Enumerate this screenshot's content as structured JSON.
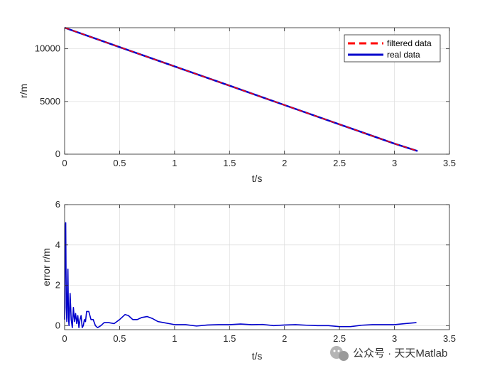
{
  "chart_data": [
    {
      "type": "line",
      "xlabel": "t/s",
      "ylabel": "r/m",
      "xlim": [
        0,
        3.5
      ],
      "ylim": [
        0,
        12000
      ],
      "xticks": [
        0,
        0.5,
        1,
        1.5,
        2,
        2.5,
        3,
        3.5
      ],
      "yticks": [
        0,
        5000,
        10000
      ],
      "xtick_labels": [
        "0",
        "0.5",
        "1",
        "1.5",
        "2",
        "2.5",
        "3",
        "3.5"
      ],
      "ytick_labels": [
        "0",
        "5000",
        "10000"
      ],
      "grid": true,
      "legend": {
        "placement": "top-right",
        "entries": [
          "filtered data",
          "real data"
        ]
      },
      "series": [
        {
          "name": "filtered data",
          "color": "#ff0000",
          "style": "dashed",
          "x": [
            0,
            0.5,
            1,
            1.5,
            2,
            2.5,
            3,
            3.21
          ],
          "y": [
            12000,
            10160,
            8330,
            6500,
            4660,
            2830,
            1000,
            300
          ]
        },
        {
          "name": "real data",
          "color": "#0000cc",
          "style": "solid",
          "x": [
            0,
            0.5,
            1,
            1.5,
            2,
            2.5,
            3,
            3.21
          ],
          "y": [
            12000,
            10160,
            8330,
            6500,
            4660,
            2830,
            1000,
            300
          ]
        }
      ]
    },
    {
      "type": "line",
      "xlabel": "t/s",
      "ylabel": "error r/m",
      "xlim": [
        0,
        3.5
      ],
      "ylim": [
        -0.2,
        6
      ],
      "xticks": [
        0,
        0.5,
        1,
        1.5,
        2,
        2.5,
        3,
        3.5
      ],
      "yticks": [
        0,
        2,
        4,
        6
      ],
      "xtick_labels": [
        "0",
        "0.5",
        "1",
        "1.5",
        "2",
        "2.5",
        "3",
        "3.5"
      ],
      "ytick_labels": [
        "0",
        "2",
        "4",
        "6"
      ],
      "grid": true,
      "series": [
        {
          "color": "#0000cc",
          "style": "solid",
          "x": [
            0,
            0.005,
            0.01,
            0.015,
            0.02,
            0.03,
            0.035,
            0.04,
            0.05,
            0.06,
            0.07,
            0.08,
            0.09,
            0.1,
            0.11,
            0.12,
            0.13,
            0.14,
            0.15,
            0.16,
            0.17,
            0.18,
            0.19,
            0.2,
            0.22,
            0.24,
            0.26,
            0.28,
            0.3,
            0.33,
            0.36,
            0.4,
            0.45,
            0.5,
            0.55,
            0.58,
            0.62,
            0.66,
            0.7,
            0.75,
            0.8,
            0.85,
            0.9,
            0.95,
            1.0,
            1.1,
            1.2,
            1.3,
            1.4,
            1.5,
            1.6,
            1.7,
            1.8,
            1.9,
            2.0,
            2.1,
            2.2,
            2.3,
            2.4,
            2.5,
            2.6,
            2.7,
            2.8,
            2.9,
            3.0,
            3.1,
            3.2
          ],
          "y": [
            0.3,
            4.9,
            5.1,
            0.9,
            0.2,
            2.8,
            0.4,
            0.0,
            1.6,
            0.3,
            -0.1,
            0.9,
            0.2,
            0.6,
            0.1,
            0.5,
            -0.1,
            0.3,
            0.5,
            -0.1,
            0.0,
            0.3,
            0.2,
            0.7,
            0.7,
            0.3,
            0.3,
            0.0,
            -0.1,
            0.0,
            0.15,
            0.15,
            0.1,
            0.3,
            0.55,
            0.5,
            0.3,
            0.3,
            0.4,
            0.45,
            0.35,
            0.2,
            0.15,
            0.1,
            0.05,
            0.05,
            -0.02,
            0.03,
            0.05,
            0.05,
            0.08,
            0.05,
            0.06,
            0.0,
            0.03,
            0.05,
            0.02,
            0.0,
            0.0,
            -0.05,
            -0.05,
            0.02,
            0.05,
            0.05,
            0.05,
            0.1,
            0.15
          ]
        }
      ]
    }
  ],
  "watermark": {
    "text": "公众号 · 天天Matlab",
    "icon": "wechat-icon"
  }
}
